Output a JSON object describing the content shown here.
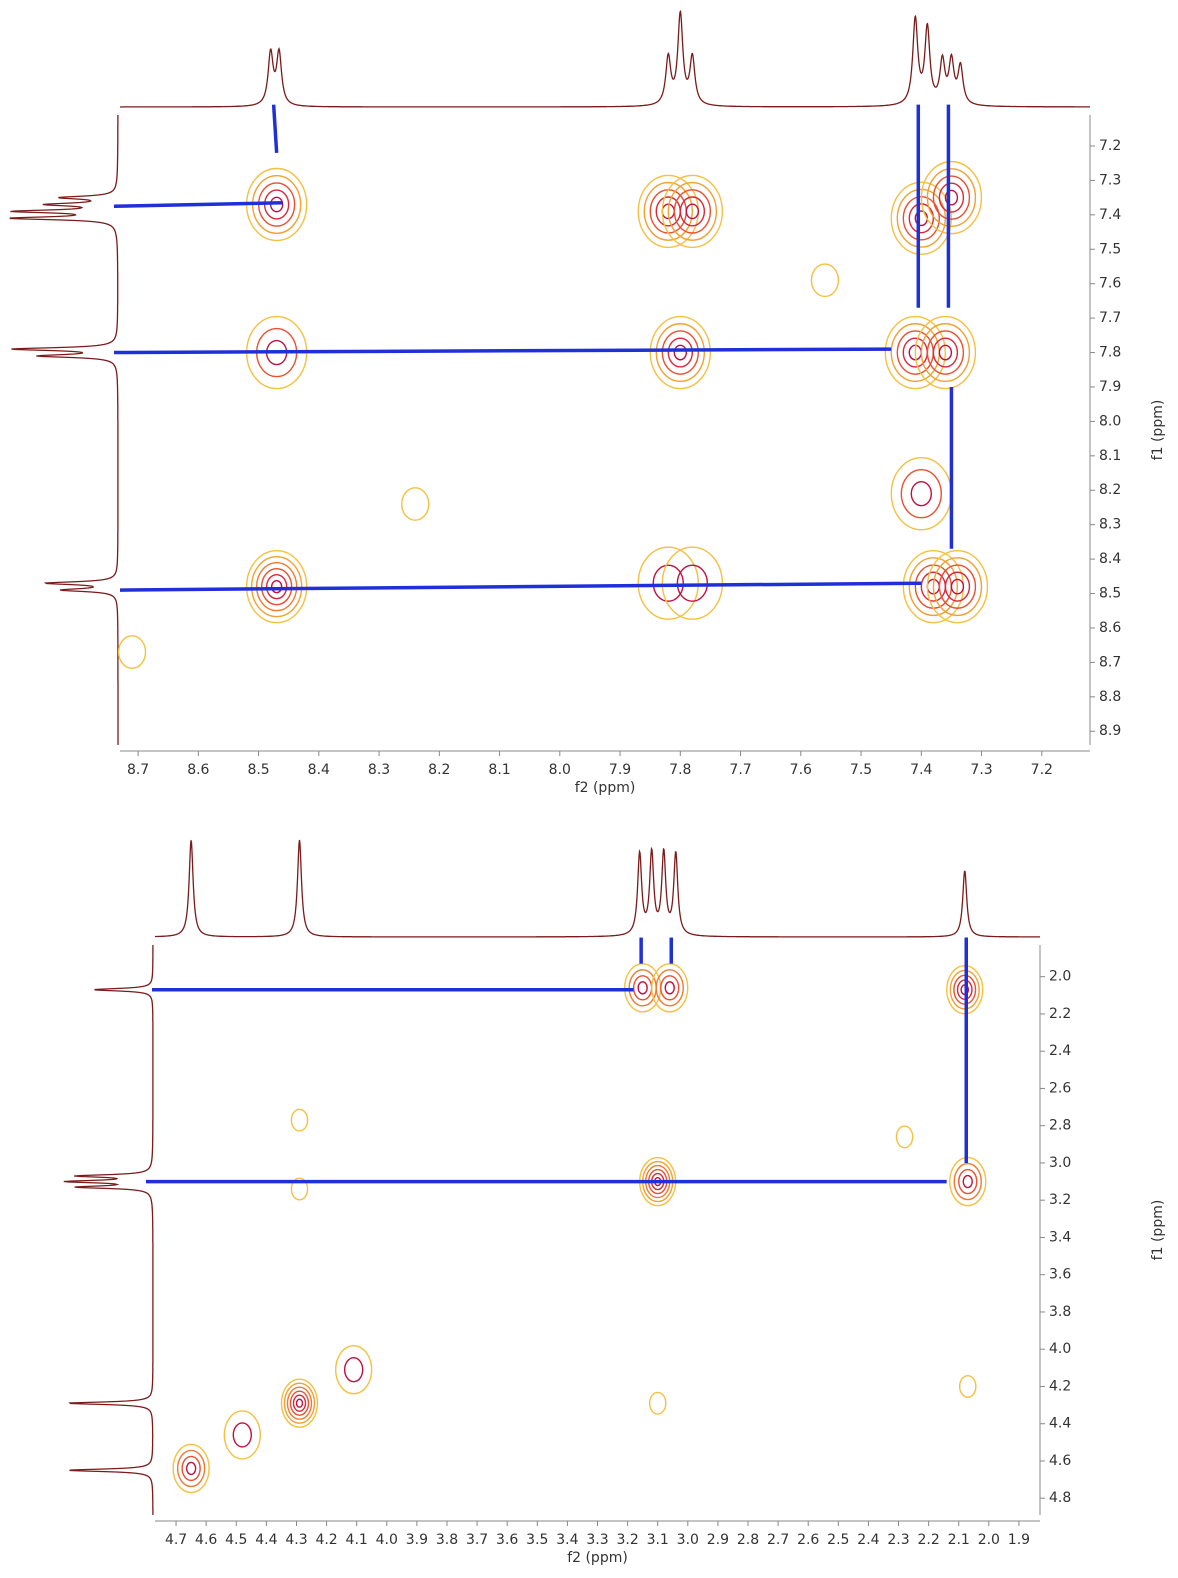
{
  "chart_data": [
    {
      "type": "contour",
      "xlabel": "f2 (ppm)",
      "ylabel": "f1 (ppm)",
      "xlim": [
        8.73,
        7.12
      ],
      "ylim": [
        7.11,
        8.94
      ],
      "xticks": [
        8.7,
        8.6,
        8.5,
        8.4,
        8.3,
        8.2,
        8.1,
        {
          "value": 8,
          "label": "8.0"
        },
        7.9,
        7.8,
        7.7,
        7.6,
        7.5,
        7.4,
        7.3,
        7.2
      ],
      "yticks": [
        7.2,
        7.3,
        7.4,
        7.5,
        7.6,
        7.7,
        7.8,
        7.9,
        {
          "value": 8,
          "label": "8.0"
        },
        8.1,
        8.2,
        8.3,
        8.4,
        8.5,
        8.6,
        8.7,
        8.8,
        8.9
      ],
      "peaks": {
        "x": [
          8.47,
          7.82,
          7.78,
          7.4,
          7.35,
          8.47,
          7.8,
          7.41,
          7.36,
          7.4,
          8.47,
          7.82,
          7.78,
          7.38,
          7.34,
          8.24,
          8.71,
          7.56
        ],
        "y": [
          7.37,
          7.39,
          7.39,
          7.41,
          7.35,
          7.8,
          7.8,
          7.8,
          7.8,
          8.21,
          8.48,
          8.47,
          8.47,
          8.48,
          8.48,
          8.24,
          8.67,
          7.59
        ],
        "levels": [
          5,
          5,
          5,
          5,
          5,
          3,
          5,
          5,
          5,
          3,
          6,
          2,
          2,
          5,
          5,
          1,
          1,
          1
        ]
      },
      "projection_x": {
        "x": [
          8.48,
          8.466,
          7.82,
          7.8,
          7.78,
          7.41,
          7.39,
          7.365,
          7.35,
          7.335
        ],
        "values": [
          0.55,
          0.55,
          0.5,
          0.95,
          0.5,
          0.9,
          0.8,
          0.45,
          0.45,
          0.4
        ]
      },
      "projection_y": {
        "y": [
          7.35,
          7.37,
          7.39,
          7.41,
          7.79,
          7.81,
          8.47,
          8.49
        ],
        "values": [
          0.5,
          0.6,
          0.9,
          0.95,
          0.95,
          0.7,
          0.65,
          0.5
        ]
      },
      "links": {
        "x1": [
          8.475,
          8.74,
          8.74,
          8.73,
          7.405,
          7.355,
          7.35
        ],
        "y1": [
          7.08,
          7.375,
          7.8,
          8.49,
          7.08,
          7.08,
          7.9
        ],
        "x2": [
          8.47,
          8.46,
          7.45,
          7.4,
          7.405,
          7.355,
          7.35
        ],
        "y2": [
          7.22,
          7.365,
          7.79,
          8.47,
          7.67,
          7.67,
          8.37
        ]
      }
    },
    {
      "type": "contour",
      "xlabel": "f2 (ppm)",
      "ylabel": "f1 (ppm)",
      "xlim": [
        4.77,
        1.83
      ],
      "ylim": [
        1.83,
        4.89
      ],
      "xticks": [
        4.7,
        4.6,
        4.5,
        4.4,
        4.3,
        4.2,
        4.1,
        {
          "value": 4,
          "label": "4.0"
        },
        3.9,
        3.8,
        3.7,
        3.6,
        3.5,
        3.4,
        3.3,
        3.2,
        3.1,
        {
          "value": 3,
          "label": "3.0"
        },
        2.9,
        2.8,
        2.7,
        2.6,
        2.5,
        2.4,
        2.3,
        2.2,
        2.1,
        {
          "value": 2,
          "label": "2.0"
        },
        1.9
      ],
      "yticks": [
        {
          "value": 2,
          "label": "2.0"
        },
        2.2,
        2.4,
        2.6,
        2.8,
        {
          "value": 3,
          "label": "3.0"
        },
        3.2,
        3.4,
        3.6,
        3.8,
        {
          "value": 4,
          "label": "4.0"
        },
        4.2,
        4.4,
        4.6,
        4.8
      ],
      "peaks": {
        "x": [
          3.15,
          3.06,
          2.08,
          3.1,
          2.07,
          4.29,
          4.65,
          4.48,
          4.11,
          4.29,
          2.07,
          3.1,
          4.29,
          2.28
        ],
        "y": [
          2.06,
          2.06,
          2.07,
          3.1,
          3.1,
          4.29,
          4.64,
          4.46,
          4.11,
          2.77,
          4.2,
          4.29,
          3.14,
          2.86
        ],
        "levels": [
          4,
          4,
          5,
          6,
          4,
          6,
          4,
          2,
          2,
          1,
          1,
          1,
          1,
          1
        ]
      },
      "projection_x": {
        "x": [
          4.65,
          4.29,
          3.16,
          3.12,
          3.08,
          3.04,
          2.08
        ],
        "values": [
          0.95,
          0.95,
          0.8,
          0.8,
          0.8,
          0.8,
          0.65
        ]
      },
      "projection_y": {
        "y": [
          2.07,
          3.07,
          3.1,
          3.13,
          4.29,
          4.65
        ],
        "values": [
          0.7,
          0.85,
          0.95,
          0.85,
          1.0,
          1.0
        ]
      },
      "links": {
        "x1": [
          4.78,
          4.8,
          3.155,
          3.055,
          2.075
        ],
        "y1": [
          2.07,
          3.1,
          1.79,
          1.79,
          1.79
        ],
        "x2": [
          3.18,
          2.14,
          3.155,
          3.055,
          2.075
        ],
        "y2": [
          2.07,
          3.1,
          1.93,
          1.93,
          3.0
        ]
      }
    }
  ]
}
